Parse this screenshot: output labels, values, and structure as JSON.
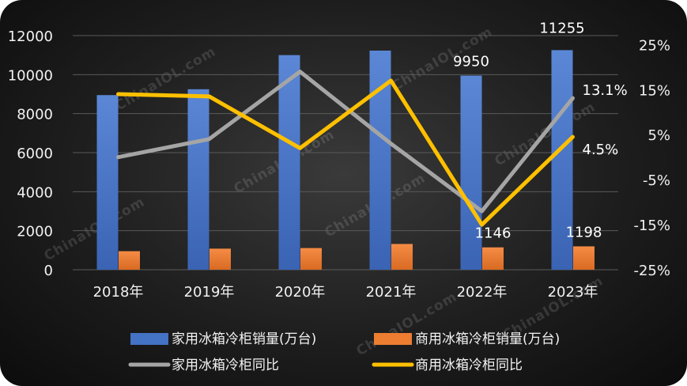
{
  "watermark": "ChinaIOL.com",
  "chart_data": {
    "type": "bar",
    "categories": [
      "2018年",
      "2019年",
      "2020年",
      "2021年",
      "2022年",
      "2023年"
    ],
    "series": [
      {
        "name": "家用冰箱冷柜销量(万台)",
        "type": "bar",
        "axis": "left",
        "color": "#4472C4",
        "values": [
          8950,
          9250,
          11000,
          11230,
          9950,
          11255
        ]
      },
      {
        "name": "商用冰箱冷柜销量(万台)",
        "type": "bar",
        "axis": "left",
        "color": "#ED7D31",
        "values": [
          950,
          1080,
          1110,
          1320,
          1146,
          1198
        ]
      },
      {
        "name": "家用冰箱冷柜同比",
        "type": "line",
        "axis": "right",
        "color": "#A5A5A5",
        "values": [
          0,
          4,
          19,
          3,
          -12,
          13.1
        ]
      },
      {
        "name": "商用冰箱冷柜同比",
        "type": "line",
        "axis": "right",
        "color": "#FFC000",
        "values": [
          14,
          13.5,
          2,
          17,
          -15,
          4.5
        ]
      }
    ],
    "y_left": {
      "ticks": [
        "0",
        "2000",
        "4000",
        "6000",
        "8000",
        "10000",
        "12000"
      ],
      "ylim": [
        0,
        12000
      ]
    },
    "y_right": {
      "ticks": [
        "-25%",
        "-15%",
        "-5%",
        "5%",
        "15%",
        "25%"
      ],
      "ylim": [
        -25,
        27
      ]
    },
    "data_labels": [
      {
        "series": 0,
        "index": 4,
        "text": "9950"
      },
      {
        "series": 0,
        "index": 5,
        "text": "11255"
      },
      {
        "series": 1,
        "index": 4,
        "text": "1146"
      },
      {
        "series": 1,
        "index": 5,
        "text": "1198"
      },
      {
        "series": 2,
        "index": 5,
        "text": "13.1%"
      },
      {
        "series": 3,
        "index": 5,
        "text": "4.5%"
      }
    ],
    "grid": true,
    "legend_position": "bottom"
  }
}
